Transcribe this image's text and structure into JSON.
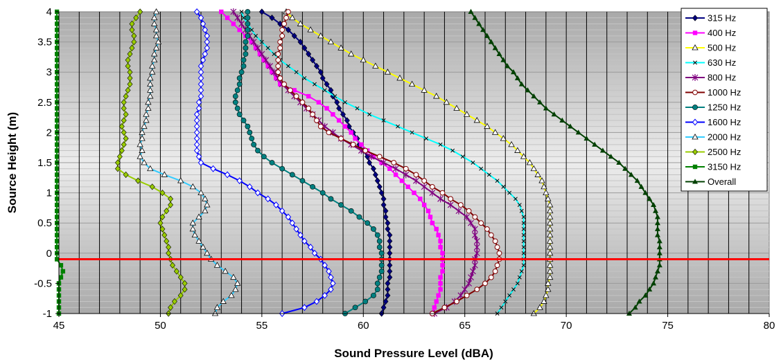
{
  "chart_data": {
    "type": "scatter",
    "xlabel": "Sound Pressure Level (dBA)",
    "ylabel": "Source Height (m)",
    "xlim": [
      45,
      80
    ],
    "ylim": [
      -1,
      4
    ],
    "xticks": [
      45,
      50,
      55,
      60,
      65,
      70,
      75,
      80
    ],
    "yticks": [
      -1,
      -0.5,
      0,
      0.5,
      1,
      1.5,
      2,
      2.5,
      3,
      3.5,
      4
    ],
    "x_gridline_step": 1,
    "y_gridline_step": 0.1,
    "grid": true,
    "legend_position": "top-right",
    "reference_line": {
      "y": -0.1,
      "color": "#FF0000"
    },
    "heights": [
      4.0,
      3.9,
      3.8,
      3.7,
      3.6,
      3.5,
      3.4,
      3.3,
      3.2,
      3.1,
      3.0,
      2.9,
      2.8,
      2.7,
      2.6,
      2.5,
      2.4,
      2.3,
      2.2,
      2.1,
      2.0,
      1.9,
      1.8,
      1.7,
      1.6,
      1.5,
      1.4,
      1.3,
      1.2,
      1.1,
      1.0,
      0.9,
      0.8,
      0.7,
      0.6,
      0.5,
      0.4,
      0.3,
      0.2,
      0.1,
      0.0,
      -0.1,
      -0.2,
      -0.3,
      -0.4,
      -0.5,
      -0.6,
      -0.7,
      -0.8,
      -0.9,
      -1.0
    ],
    "series": [
      {
        "name": "315 Hz",
        "color": "#000080",
        "marker": "diamond",
        "values": [
          55.0,
          55.5,
          55.9,
          56.3,
          56.6,
          56.9,
          57.1,
          57.3,
          57.5,
          57.7,
          57.9,
          58.0,
          58.2,
          58.4,
          58.5,
          58.7,
          58.8,
          59.0,
          59.2,
          59.3,
          59.5,
          59.7,
          59.8,
          60.0,
          60.2,
          60.3,
          60.5,
          60.6,
          60.7,
          60.8,
          60.9,
          61.0,
          61.0,
          61.1,
          61.1,
          61.2,
          61.2,
          61.3,
          61.3,
          61.3,
          61.3,
          61.3,
          61.3,
          61.3,
          61.3,
          61.2,
          61.2,
          61.2,
          61.1,
          61.0,
          60.9
        ]
      },
      {
        "name": "400 Hz",
        "color": "#FF00FF",
        "marker": "square",
        "values": [
          53.0,
          53.3,
          53.6,
          53.9,
          54.2,
          54.5,
          54.7,
          54.9,
          55.1,
          55.3,
          55.5,
          55.7,
          55.9,
          56.6,
          57.3,
          57.8,
          58.2,
          58.5,
          58.8,
          59.1,
          59.4,
          59.6,
          59.9,
          60.2,
          60.5,
          60.9,
          61.3,
          61.6,
          61.9,
          62.2,
          62.5,
          62.8,
          63.0,
          63.2,
          63.3,
          63.4,
          63.6,
          63.7,
          63.8,
          63.8,
          63.9,
          63.9,
          63.9,
          63.9,
          63.8,
          63.8,
          63.8,
          63.7,
          63.6,
          63.5,
          63.4
        ]
      },
      {
        "name": "500 Hz",
        "color": "#FFFF00",
        "marker": "triangle-open",
        "values": [
          56.2,
          56.5,
          56.9,
          57.4,
          57.9,
          58.4,
          58.9,
          59.4,
          60.0,
          60.6,
          61.2,
          61.8,
          62.4,
          63.0,
          63.6,
          64.1,
          64.6,
          65.1,
          65.6,
          66.1,
          66.5,
          66.9,
          67.3,
          67.6,
          67.9,
          68.2,
          68.4,
          68.6,
          68.8,
          68.9,
          69.0,
          69.1,
          69.2,
          69.2,
          69.2,
          69.2,
          69.2,
          69.2,
          69.2,
          69.2,
          69.2,
          69.2,
          69.2,
          69.2,
          69.2,
          69.1,
          69.1,
          69.0,
          68.9,
          68.7,
          68.4
        ]
      },
      {
        "name": "630 Hz",
        "color": "#00FFFF",
        "marker": "x",
        "values": [
          54.0,
          54.1,
          54.3,
          54.5,
          54.7,
          55.0,
          55.3,
          55.6,
          55.9,
          56.3,
          56.7,
          57.1,
          57.6,
          58.1,
          58.6,
          59.1,
          59.7,
          60.3,
          61.0,
          61.7,
          62.4,
          63.1,
          63.8,
          64.4,
          64.9,
          65.4,
          65.8,
          66.2,
          66.6,
          66.9,
          67.2,
          67.5,
          67.7,
          67.8,
          67.9,
          67.9,
          67.9,
          67.9,
          67.9,
          67.9,
          67.9,
          67.9,
          67.9,
          67.8,
          67.7,
          67.6,
          67.4,
          67.2,
          67.0,
          66.8,
          66.6
        ]
      },
      {
        "name": "800 Hz",
        "color": "#800080",
        "marker": "star",
        "values": [
          53.6,
          53.8,
          54.0,
          54.2,
          54.4,
          54.6,
          54.8,
          55.0,
          55.2,
          55.4,
          55.6,
          55.8,
          56.0,
          56.3,
          56.6,
          56.9,
          57.2,
          57.5,
          57.8,
          58.1,
          58.5,
          58.9,
          59.4,
          59.9,
          60.4,
          61.0,
          61.6,
          62.1,
          62.6,
          63.0,
          63.4,
          63.8,
          64.3,
          64.7,
          65.1,
          65.3,
          65.5,
          65.5,
          65.6,
          65.6,
          65.6,
          65.5,
          65.5,
          65.4,
          65.3,
          65.2,
          65.0,
          64.8,
          64.5,
          64.1,
          63.5
        ]
      },
      {
        "name": "1000 Hz",
        "color": "#800000",
        "marker": "circle-open",
        "values": [
          56.3,
          56.2,
          56.1,
          56.0,
          56.0,
          55.9,
          55.9,
          55.8,
          55.8,
          55.8,
          55.8,
          55.9,
          56.1,
          56.4,
          56.7,
          57.0,
          57.3,
          57.5,
          57.7,
          57.9,
          58.3,
          58.9,
          59.5,
          60.1,
          60.8,
          61.5,
          62.1,
          62.6,
          63.0,
          63.4,
          63.9,
          64.3,
          64.8,
          65.2,
          65.5,
          65.8,
          66.1,
          66.3,
          66.5,
          66.6,
          66.7,
          66.7,
          66.6,
          66.5,
          66.3,
          66.0,
          65.6,
          65.1,
          64.6,
          64.0,
          63.4
        ]
      },
      {
        "name": "1250 Hz",
        "color": "#008080",
        "marker": "circle",
        "values": [
          54.3,
          54.3,
          54.3,
          54.3,
          54.3,
          54.2,
          54.2,
          54.2,
          54.1,
          54.1,
          54.0,
          53.9,
          53.9,
          53.8,
          53.7,
          53.7,
          53.8,
          53.9,
          54.1,
          54.3,
          54.4,
          54.5,
          54.6,
          54.8,
          55.1,
          55.5,
          56.0,
          56.5,
          57.0,
          57.5,
          58.0,
          58.4,
          58.9,
          59.4,
          59.8,
          60.2,
          60.5,
          60.7,
          60.8,
          60.8,
          60.9,
          60.9,
          60.9,
          60.9,
          60.8,
          60.7,
          60.7,
          60.5,
          60.1,
          59.6,
          59.1
        ]
      },
      {
        "name": "1600 Hz",
        "color": "#0000FF",
        "marker": "diamond-open",
        "values": [
          51.8,
          52.0,
          52.1,
          52.2,
          52.3,
          52.3,
          52.3,
          52.2,
          52.1,
          52.0,
          52.0,
          52.0,
          52.0,
          52.0,
          52.0,
          51.9,
          51.9,
          51.8,
          51.8,
          51.8,
          51.8,
          51.8,
          51.8,
          51.8,
          51.9,
          52.0,
          52.6,
          53.3,
          53.9,
          54.4,
          54.8,
          55.3,
          55.7,
          56.0,
          56.3,
          56.5,
          56.7,
          56.9,
          57.1,
          57.4,
          57.6,
          57.9,
          58.1,
          58.3,
          58.4,
          58.5,
          58.4,
          58.1,
          57.7,
          57.1,
          56.0
        ]
      },
      {
        "name": "2000 Hz",
        "color": "#33CCFF",
        "marker": "triangle-open",
        "values": [
          49.8,
          49.7,
          49.7,
          49.8,
          49.8,
          49.9,
          49.8,
          49.7,
          49.7,
          49.6,
          49.6,
          49.5,
          49.5,
          49.5,
          49.5,
          49.4,
          49.4,
          49.3,
          49.3,
          49.2,
          49.1,
          49.1,
          49.0,
          49.1,
          49.0,
          49.2,
          49.5,
          50.2,
          51.0,
          51.6,
          52.0,
          52.2,
          52.3,
          52.2,
          51.9,
          51.6,
          51.6,
          51.7,
          51.9,
          52.1,
          52.3,
          52.5,
          52.8,
          53.2,
          53.6,
          53.8,
          53.7,
          53.5,
          53.1,
          52.8,
          52.7
        ]
      },
      {
        "name": "2500 Hz",
        "color": "#99CC00",
        "marker": "diamond",
        "values": [
          49.0,
          48.8,
          48.6,
          48.6,
          48.7,
          48.7,
          48.6,
          48.5,
          48.4,
          48.4,
          48.5,
          48.5,
          48.5,
          48.4,
          48.3,
          48.2,
          48.2,
          48.3,
          48.2,
          48.1,
          48.2,
          48.3,
          48.2,
          48.1,
          48.0,
          47.9,
          47.9,
          48.3,
          48.9,
          49.6,
          50.1,
          50.5,
          50.5,
          50.3,
          50.1,
          50.0,
          50.1,
          50.2,
          50.3,
          50.4,
          50.4,
          50.5,
          50.6,
          50.8,
          51.0,
          51.2,
          51.2,
          51.0,
          50.7,
          50.5,
          50.4
        ]
      },
      {
        "name": "3150 Hz",
        "color": "#008000",
        "marker": "square",
        "values": [
          44.9,
          44.9,
          44.9,
          44.9,
          44.9,
          44.9,
          44.9,
          44.9,
          44.9,
          44.9,
          44.9,
          44.9,
          44.9,
          44.9,
          44.9,
          44.9,
          44.9,
          44.9,
          44.9,
          44.9,
          44.9,
          44.9,
          44.9,
          44.9,
          44.9,
          44.9,
          44.9,
          44.9,
          44.9,
          44.9,
          44.9,
          44.9,
          44.9,
          44.9,
          44.9,
          44.9,
          44.9,
          44.9,
          44.9,
          44.9,
          44.9,
          44.9,
          45.1,
          45.2,
          45.1,
          45.0,
          45.0,
          45.0,
          45.0,
          45.0,
          45.0
        ]
      },
      {
        "name": "Overall",
        "color": "#004000",
        "marker": "triangle",
        "values": [
          65.3,
          65.5,
          65.7,
          65.9,
          66.1,
          66.3,
          66.5,
          66.7,
          66.9,
          67.1,
          67.4,
          67.6,
          67.8,
          68.1,
          68.4,
          68.7,
          69.0,
          69.4,
          69.8,
          70.2,
          70.6,
          71.0,
          71.4,
          71.8,
          72.2,
          72.6,
          72.9,
          73.2,
          73.5,
          73.7,
          73.9,
          74.1,
          74.3,
          74.4,
          74.5,
          74.5,
          74.5,
          74.5,
          74.6,
          74.6,
          74.6,
          74.6,
          74.6,
          74.5,
          74.4,
          74.3,
          74.1,
          73.9,
          73.6,
          73.4,
          73.1
        ]
      }
    ]
  }
}
